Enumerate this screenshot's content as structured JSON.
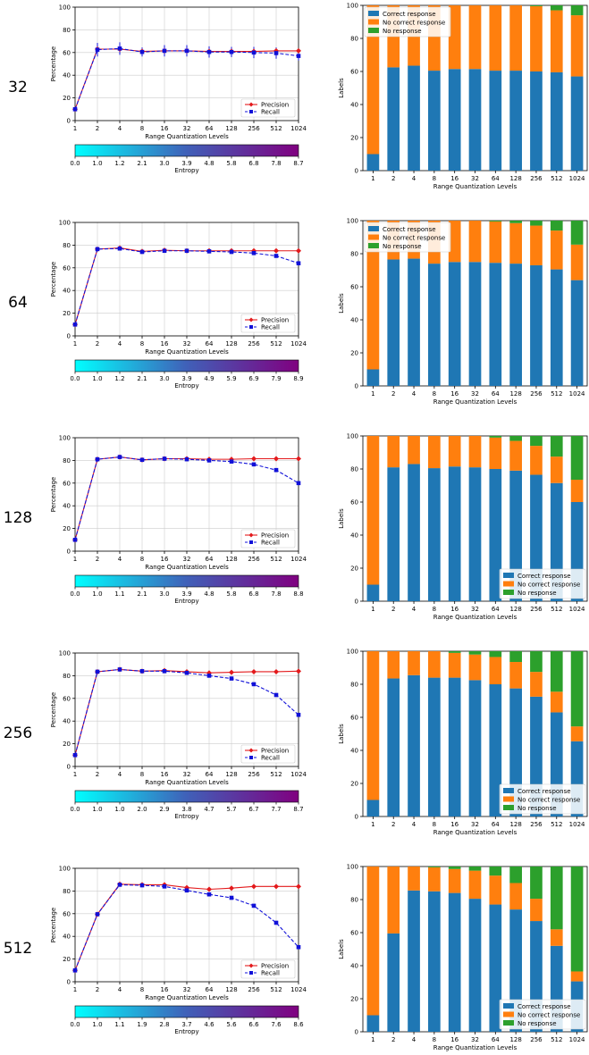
{
  "figure": {
    "shared": {
      "xlabel": "Range Quantization Levels",
      "categories": [
        "1",
        "2",
        "4",
        "8",
        "16",
        "32",
        "64",
        "128",
        "256",
        "512",
        "1024"
      ],
      "left_ylabel": "Percentage",
      "right_ylabel": "Labels",
      "entropy_label": "Entropy",
      "precision_label": "Precision",
      "recall_label": "Recall",
      "stack_labels": [
        "Correct response",
        "No correct response",
        "No response"
      ],
      "yticks": [
        0,
        20,
        40,
        60,
        80,
        100
      ]
    },
    "colors": {
      "precision": "#e31a1c",
      "recall": "#1010d8",
      "correct": "#1f77b4",
      "no_correct": "#ff7f0e",
      "no_response": "#2ca02c",
      "entropy_start": "#00ffff",
      "entropy_end": "#800080",
      "grid": "#cccccc"
    }
  },
  "chart_data": [
    {
      "row_label": "32",
      "type": "line",
      "ylim": [
        0,
        100
      ],
      "precision": [
        10,
        63,
        63,
        61,
        61.5,
        61.5,
        61,
        61,
        61,
        61.5,
        61.5
      ],
      "recall": [
        10,
        62.5,
        63.5,
        60.5,
        61.5,
        61.5,
        60.5,
        60.5,
        60,
        59.5,
        57
      ],
      "error": [
        0,
        6,
        5.5,
        4,
        5,
        5,
        5,
        4.5,
        5,
        5,
        4
      ],
      "entropy_ticks": [
        "0.0",
        "1.0",
        "1.2",
        "2.1",
        "3.0",
        "3.9",
        "4.8",
        "5.8",
        "6.8",
        "7.8",
        "8.7"
      ],
      "stacked": {
        "correct": [
          10,
          62.5,
          63.5,
          60.5,
          61.5,
          61.5,
          60.5,
          60.5,
          60,
          59.5,
          57
        ],
        "no_correct": [
          90,
          37.5,
          36.5,
          39.5,
          38.5,
          38.5,
          39.5,
          39.5,
          39.5,
          37.5,
          37
        ],
        "no_response": [
          0,
          0,
          0,
          0,
          0,
          0,
          0,
          0,
          0.5,
          3,
          6
        ]
      },
      "legend_pos": "upper-left"
    },
    {
      "row_label": "64",
      "type": "line",
      "ylim": [
        0,
        100
      ],
      "precision": [
        10,
        76.5,
        77.5,
        74.5,
        75.5,
        75,
        75,
        75,
        75,
        75,
        75
      ],
      "recall": [
        10,
        76.5,
        77,
        74,
        75,
        75,
        74.5,
        74,
        73,
        70.5,
        64
      ],
      "error": [
        0,
        0,
        0,
        0,
        0,
        0,
        0,
        0,
        0,
        0,
        0
      ],
      "entropy_ticks": [
        "0.0",
        "1.0",
        "1.2",
        "2.1",
        "3.0",
        "3.9",
        "4.9",
        "5.9",
        "6.9",
        "7.9",
        "8.9"
      ],
      "stacked": {
        "correct": [
          10,
          76.5,
          77,
          74,
          75,
          75,
          74.5,
          74,
          73,
          70.5,
          64
        ],
        "no_correct": [
          90,
          23.5,
          23,
          26,
          25,
          25,
          25,
          24.5,
          24,
          23.5,
          21.5
        ],
        "no_response": [
          0,
          0,
          0,
          0,
          0,
          0,
          0.5,
          1.5,
          3,
          6,
          14.5
        ]
      },
      "legend_pos": "upper-left"
    },
    {
      "row_label": "128",
      "type": "line",
      "ylim": [
        0,
        100
      ],
      "precision": [
        10,
        81,
        83,
        80.5,
        81.5,
        81.5,
        81,
        81,
        81.5,
        81.5,
        81.5
      ],
      "recall": [
        10,
        81,
        83,
        80.5,
        81.5,
        81,
        80,
        79,
        76.5,
        71.5,
        60
      ],
      "error": [
        0,
        0,
        0,
        0,
        0,
        0,
        0,
        0,
        0,
        0,
        0
      ],
      "entropy_ticks": [
        "0.0",
        "1.0",
        "1.1",
        "2.1",
        "3.0",
        "3.9",
        "4.8",
        "5.8",
        "6.8",
        "7.8",
        "8.8"
      ],
      "stacked": {
        "correct": [
          10,
          81,
          83,
          80.5,
          81.5,
          81,
          80,
          79,
          76.5,
          71.5,
          60
        ],
        "no_correct": [
          90,
          19,
          17,
          19.5,
          18.5,
          19,
          19,
          18,
          17.5,
          16,
          13.5
        ],
        "no_response": [
          0,
          0,
          0,
          0,
          0,
          0,
          1,
          3,
          6,
          12.5,
          26.5
        ]
      },
      "legend_pos": "lower-right"
    },
    {
      "row_label": "256",
      "type": "line",
      "ylim": [
        0,
        100
      ],
      "precision": [
        10,
        83.5,
        85.5,
        84,
        84.5,
        83.5,
        82.5,
        83,
        83.5,
        83.5,
        84
      ],
      "recall": [
        10,
        83.5,
        85.5,
        84,
        84,
        82.5,
        80,
        77.5,
        72.5,
        63,
        45.5
      ],
      "error": [
        0,
        0,
        0,
        0,
        0,
        0,
        0,
        0,
        0,
        0,
        0
      ],
      "entropy_ticks": [
        "0.0",
        "1.0",
        "1.0",
        "2.0",
        "2.9",
        "3.8",
        "4.7",
        "5.7",
        "6.7",
        "7.7",
        "8.7"
      ],
      "stacked": {
        "correct": [
          10,
          83.5,
          85.5,
          84,
          84,
          82.5,
          80,
          77.5,
          72.5,
          63,
          45.5
        ],
        "no_correct": [
          90,
          16.5,
          14.5,
          16,
          15,
          15.5,
          16.5,
          16,
          15,
          12.5,
          9
        ],
        "no_response": [
          0,
          0,
          0,
          0,
          1,
          2,
          3.5,
          6.5,
          12.5,
          24.5,
          45.5
        ]
      },
      "legend_pos": "lower-right"
    },
    {
      "row_label": "512",
      "type": "line",
      "ylim": [
        0,
        100
      ],
      "precision": [
        10,
        59.5,
        86,
        85.5,
        85.5,
        83,
        81.5,
        82.5,
        84,
        84,
        84
      ],
      "recall": [
        10,
        59.5,
        85.5,
        85,
        84,
        80.5,
        77,
        74,
        67,
        52,
        30.5
      ],
      "error": [
        0,
        0,
        0,
        0,
        0,
        0,
        0,
        0,
        0,
        0,
        0
      ],
      "entropy_ticks": [
        "0.0",
        "1.0",
        "1.1",
        "1.9",
        "2.8",
        "3.7",
        "4.6",
        "5.6",
        "6.6",
        "7.6",
        "8.6"
      ],
      "stacked": {
        "correct": [
          10,
          59.5,
          85.5,
          85,
          84,
          80.5,
          77,
          74,
          67,
          52,
          30.5
        ],
        "no_correct": [
          90,
          40.5,
          14.5,
          14.5,
          14.5,
          17,
          17.5,
          16,
          13.5,
          10,
          6
        ],
        "no_response": [
          0,
          0,
          0,
          0.5,
          1.5,
          2.5,
          5.5,
          10,
          19.5,
          38,
          63.5
        ]
      },
      "legend_pos": "lower-right"
    }
  ]
}
